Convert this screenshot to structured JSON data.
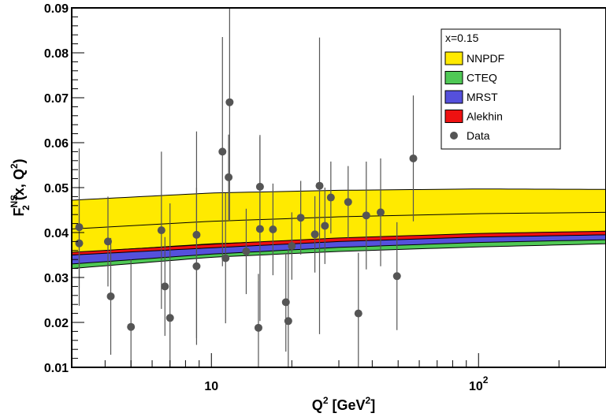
{
  "chart_data": {
    "type": "line",
    "x_scale": "log",
    "xlim": [
      3,
      300
    ],
    "ylim": [
      0.01,
      0.09
    ],
    "y_ticks": [
      "0.01",
      "0.02",
      "0.03",
      "0.04",
      "0.05",
      "0.06",
      "0.07",
      "0.08",
      "0.09"
    ],
    "y_tick_values": [
      0.01,
      0.02,
      0.03,
      0.04,
      0.05,
      0.06,
      0.07,
      0.08,
      0.09
    ],
    "x_tick_labels": [
      {
        "value": 10,
        "base": "10",
        "exp": ""
      },
      {
        "value": 100,
        "base": "10",
        "exp": "2"
      }
    ],
    "ylabel": {
      "main": "F",
      "sup": "NS",
      "sub": "2",
      "rest": "(x, Q",
      "sup2": "2",
      "close": ")"
    },
    "xlabel": {
      "main": "Q",
      "sup": "2",
      "rest": " [GeV",
      "sup2": "2",
      "close": "]"
    },
    "legend": {
      "title": "x=0.15",
      "placement": "top-right",
      "entries": [
        {
          "label": "NNPDF",
          "color": "#ffea00"
        },
        {
          "label": "CTEQ",
          "color": "#4fc855"
        },
        {
          "label": "MRST",
          "color": "#5550dc"
        },
        {
          "label": "Alekhin",
          "color": "#ee1111"
        },
        {
          "label": "Data",
          "color": "#555555",
          "marker": "circle"
        }
      ]
    },
    "bands": [
      {
        "name": "NNPDF",
        "color": "#ffea00",
        "x": [
          3,
          10,
          30,
          100,
          300
        ],
        "lower": [
          0.0355,
          0.0375,
          0.0385,
          0.0395,
          0.04
        ],
        "upper": [
          0.0472,
          0.0488,
          0.0494,
          0.0497,
          0.0496
        ],
        "central": [
          0.0408,
          0.0425,
          0.0435,
          0.0442,
          0.0445
        ]
      },
      {
        "name": "CTEQ",
        "color": "#4fc855",
        "x": [
          3,
          10,
          30,
          100,
          300
        ],
        "lower": [
          0.032,
          0.0345,
          0.0358,
          0.0368,
          0.0375
        ],
        "upper": [
          0.0345,
          0.0363,
          0.0375,
          0.0383,
          0.0388
        ]
      },
      {
        "name": "MRST",
        "color": "#5550dc",
        "x": [
          3,
          10,
          30,
          100,
          300
        ],
        "lower": [
          0.033,
          0.0352,
          0.0367,
          0.0378,
          0.0384
        ],
        "upper": [
          0.035,
          0.037,
          0.0382,
          0.0392,
          0.0397
        ]
      },
      {
        "name": "Alekhin",
        "color": "#ee1111",
        "x": [
          3,
          10,
          30,
          100,
          300
        ],
        "lower": [
          0.035,
          0.0366,
          0.038,
          0.039,
          0.0395
        ],
        "upper": [
          0.0356,
          0.0374,
          0.0388,
          0.0398,
          0.0403
        ]
      }
    ],
    "data": {
      "name": "Data",
      "points": [
        {
          "x": 3.2,
          "y": 0.0412,
          "err": 0.0175
        },
        {
          "x": 3.2,
          "y": 0.0376,
          "err": 0.01
        },
        {
          "x": 4.1,
          "y": 0.038,
          "err": 0.01
        },
        {
          "x": 4.2,
          "y": 0.0258,
          "err": 0.013
        },
        {
          "x": 5.0,
          "y": 0.019,
          "err": 0.015
        },
        {
          "x": 6.5,
          "y": 0.0405,
          "err": 0.0175
        },
        {
          "x": 6.7,
          "y": 0.028,
          "err": 0.011
        },
        {
          "x": 7.0,
          "y": 0.021,
          "err": 0.0255
        },
        {
          "x": 8.8,
          "y": 0.0395,
          "err": 0.023
        },
        {
          "x": 8.8,
          "y": 0.0325,
          "err": 0.0175
        },
        {
          "x": 11.0,
          "y": 0.058,
          "err": 0.0255
        },
        {
          "x": 11.3,
          "y": 0.0343,
          "err": 0.0145
        },
        {
          "x": 11.6,
          "y": 0.0523,
          "err": 0.0095
        },
        {
          "x": 11.7,
          "y": 0.069,
          "err": 0.0265
        },
        {
          "x": 13.5,
          "y": 0.0358,
          "err": 0.0095
        },
        {
          "x": 15.0,
          "y": 0.0188,
          "err": 0.012
        },
        {
          "x": 15.2,
          "y": 0.0502,
          "err": 0.0115
        },
        {
          "x": 15.2,
          "y": 0.0408,
          "err": 0.0205
        },
        {
          "x": 17.0,
          "y": 0.0407,
          "err": 0.0102
        },
        {
          "x": 19.0,
          "y": 0.0245,
          "err": 0.011
        },
        {
          "x": 19.4,
          "y": 0.0203,
          "err": 0.016
        },
        {
          "x": 20.0,
          "y": 0.037,
          "err": 0.0075
        },
        {
          "x": 21.6,
          "y": 0.0433,
          "err": 0.0082
        },
        {
          "x": 24.4,
          "y": 0.0396,
          "err": 0.0085
        },
        {
          "x": 25.4,
          "y": 0.0504,
          "err": 0.033
        },
        {
          "x": 26.6,
          "y": 0.0415,
          "err": 0.0085
        },
        {
          "x": 28.0,
          "y": 0.0478,
          "err": 0.008
        },
        {
          "x": 32.5,
          "y": 0.0468,
          "err": 0.008
        },
        {
          "x": 35.5,
          "y": 0.022,
          "err": 0.0135
        },
        {
          "x": 38.0,
          "y": 0.0438,
          "err": 0.012
        },
        {
          "x": 43.0,
          "y": 0.0445,
          "err": 0.012
        },
        {
          "x": 49.5,
          "y": 0.0303,
          "err": 0.012
        },
        {
          "x": 57.0,
          "y": 0.0565,
          "err": 0.014
        }
      ]
    }
  }
}
